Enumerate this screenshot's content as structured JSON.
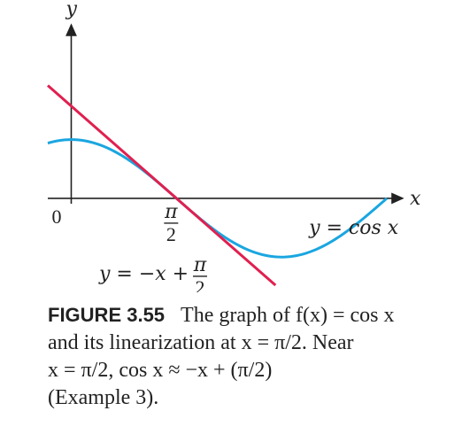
{
  "chart_data": {
    "type": "line",
    "title": "",
    "xlabel": "x",
    "ylabel": "y",
    "xlim": [
      -0.35,
      4.95
    ],
    "ylim": [
      -1.6,
      3.0
    ],
    "x_ticks": [
      {
        "value": 0,
        "label": "0"
      },
      {
        "value": 1.5708,
        "label_num": "π",
        "label_den": "2"
      }
    ],
    "series": [
      {
        "name": "y = cos x",
        "function": "cos",
        "x_range": [
          -0.35,
          4.7124
        ],
        "color": "#1aa6e0"
      },
      {
        "name": "y = −x + π/2",
        "function": "linear",
        "slope": -1,
        "intercept": 1.5708,
        "x_range": [
          -0.35,
          3.05
        ],
        "color": "#e0204f"
      }
    ],
    "annotations": {
      "cos_label": "y = cos x",
      "tangent_label_lhs": "y = −x +",
      "tangent_label_num": "π",
      "tangent_label_den": "2"
    }
  },
  "caption": {
    "lead": "FIGURE 3.55",
    "lines": [
      "The graph of f(x) = cos x",
      "and its linearization at x = π/2. Near",
      "x = π/2, cos x ≈ −x + (π/2)",
      "(Example 3)."
    ]
  }
}
